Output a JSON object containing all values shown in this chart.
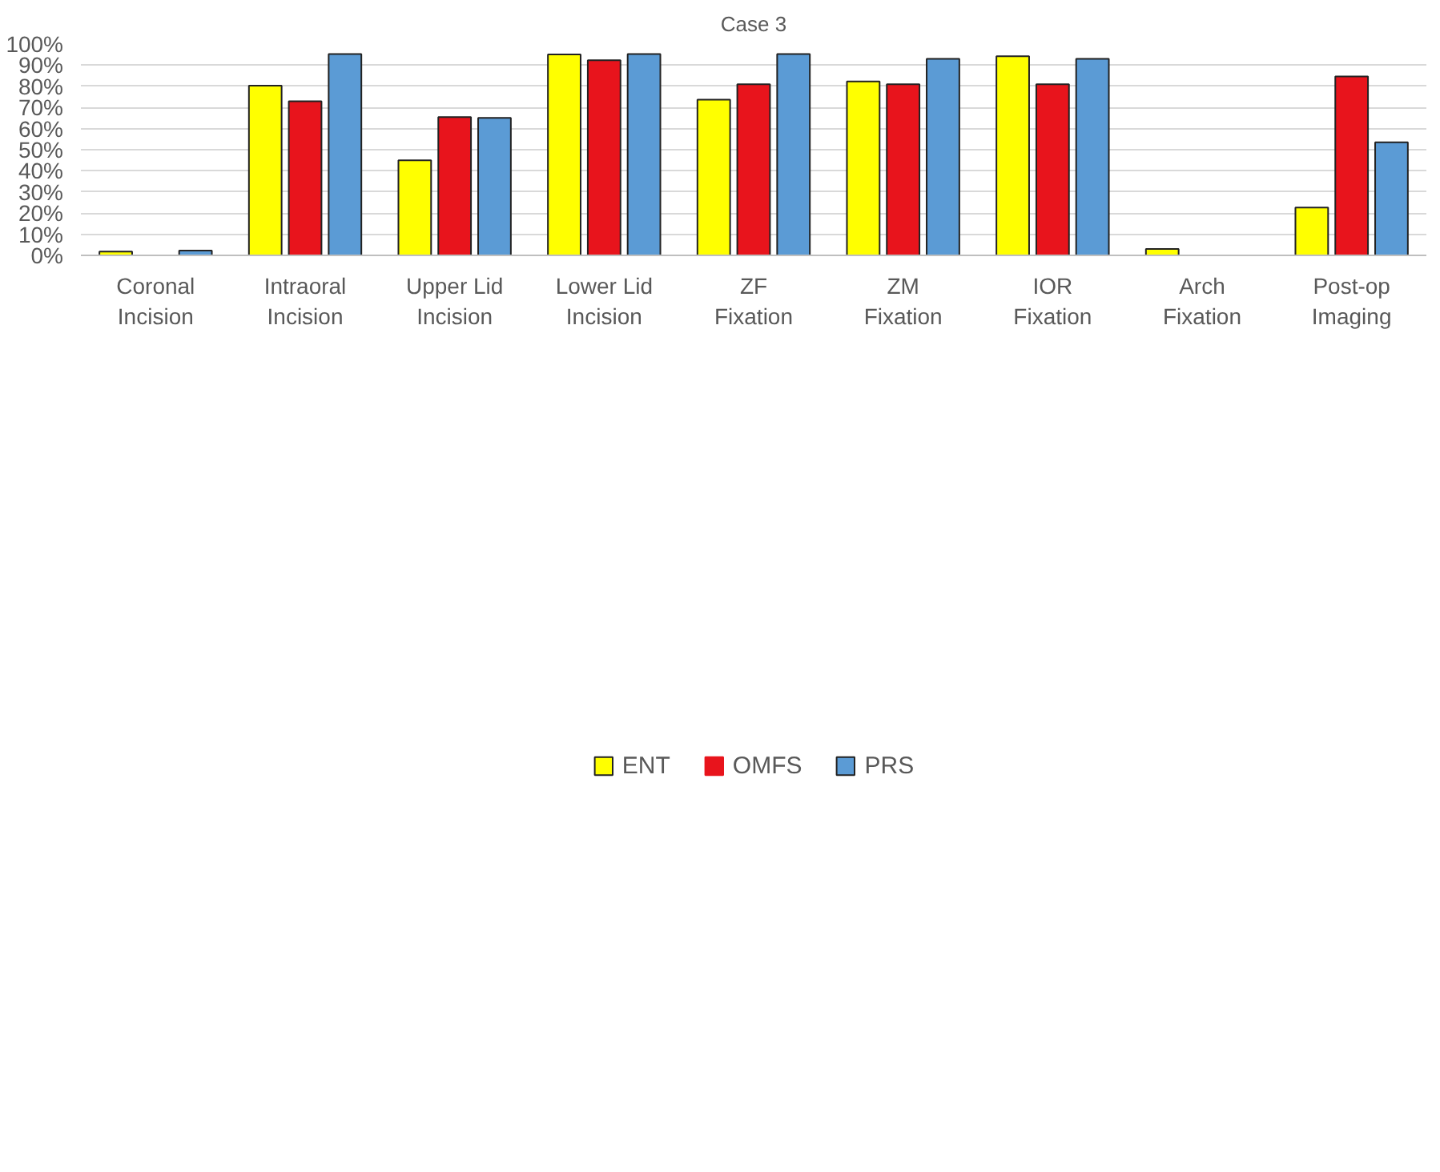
{
  "chart_data": {
    "type": "bar",
    "title": "Case 3",
    "categories": [
      "Coronal Incision",
      "Intraoral Incision",
      "Upper Lid Incision",
      "Lower Lid Incision",
      "ZF Fixation",
      "ZM Fixation",
      "IOR Fixation",
      "Arch Fixation",
      "Post-op Imaging"
    ],
    "series": [
      {
        "name": "ENT",
        "color": "#ffff00",
        "values": [
          1.8,
          80.3,
          45.0,
          95.1,
          73.7,
          82.3,
          94.2,
          3.0,
          22.6
        ]
      },
      {
        "name": "OMFS",
        "color": "#e8141c",
        "values": [
          0,
          72.9,
          65.4,
          92.3,
          81.0,
          81.0,
          81.0,
          0,
          84.7
        ]
      },
      {
        "name": "PRS",
        "color": "#5b9bd5",
        "values": [
          2.3,
          95.3,
          65.1,
          95.3,
          95.3,
          93.0,
          93.0,
          0,
          53.5
        ]
      }
    ],
    "ylim": [
      0,
      100
    ],
    "yticks": [
      {
        "value": 0,
        "label": "0%"
      },
      {
        "value": 10,
        "label": "10%"
      },
      {
        "value": 20,
        "label": "20%"
      },
      {
        "value": 30,
        "label": "30%"
      },
      {
        "value": 40,
        "label": "40%"
      },
      {
        "value": 50,
        "label": "50%"
      },
      {
        "value": 60,
        "label": "60%"
      },
      {
        "value": 70,
        "label": "70%"
      },
      {
        "value": 80,
        "label": "80%"
      },
      {
        "value": 90,
        "label": "90%"
      },
      {
        "value": 100,
        "label": "100%"
      }
    ],
    "grid": "y",
    "legend": "bottom"
  }
}
